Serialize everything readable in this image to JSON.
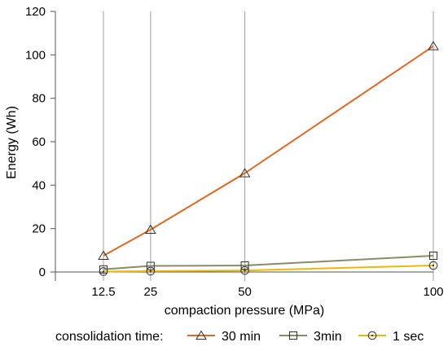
{
  "chart_data": {
    "type": "line",
    "title": "",
    "xlabel": "compaction pressure (MPa)",
    "ylabel": "Energy (Wh)",
    "x": [
      12.5,
      25,
      50,
      100
    ],
    "x_tick_labels": [
      "12.5",
      "25",
      "50",
      "100"
    ],
    "xlim": [
      0,
      100
    ],
    "ylim": [
      0,
      120
    ],
    "y_ticks": [
      0,
      20,
      40,
      60,
      80,
      100,
      120
    ],
    "y_tick_labels": [
      "0",
      "20",
      "40",
      "60",
      "80",
      "100",
      "120"
    ],
    "grid": "vertical gridlines at x ticks",
    "legend_title": "consolidation time:",
    "legend_position": "bottom",
    "series": [
      {
        "name": "30 min",
        "values": [
          7.5,
          19.5,
          45.5,
          104
        ],
        "color": "#e8661e",
        "marker": "triangle"
      },
      {
        "name": "3min",
        "values": [
          1.2,
          2.8,
          3.0,
          7.5
        ],
        "color": "#8a8c62",
        "marker": "square"
      },
      {
        "name": "1 sec",
        "values": [
          0.2,
          0.4,
          0.7,
          3.0
        ],
        "color": "#f2b705",
        "marker": "circle"
      }
    ]
  }
}
